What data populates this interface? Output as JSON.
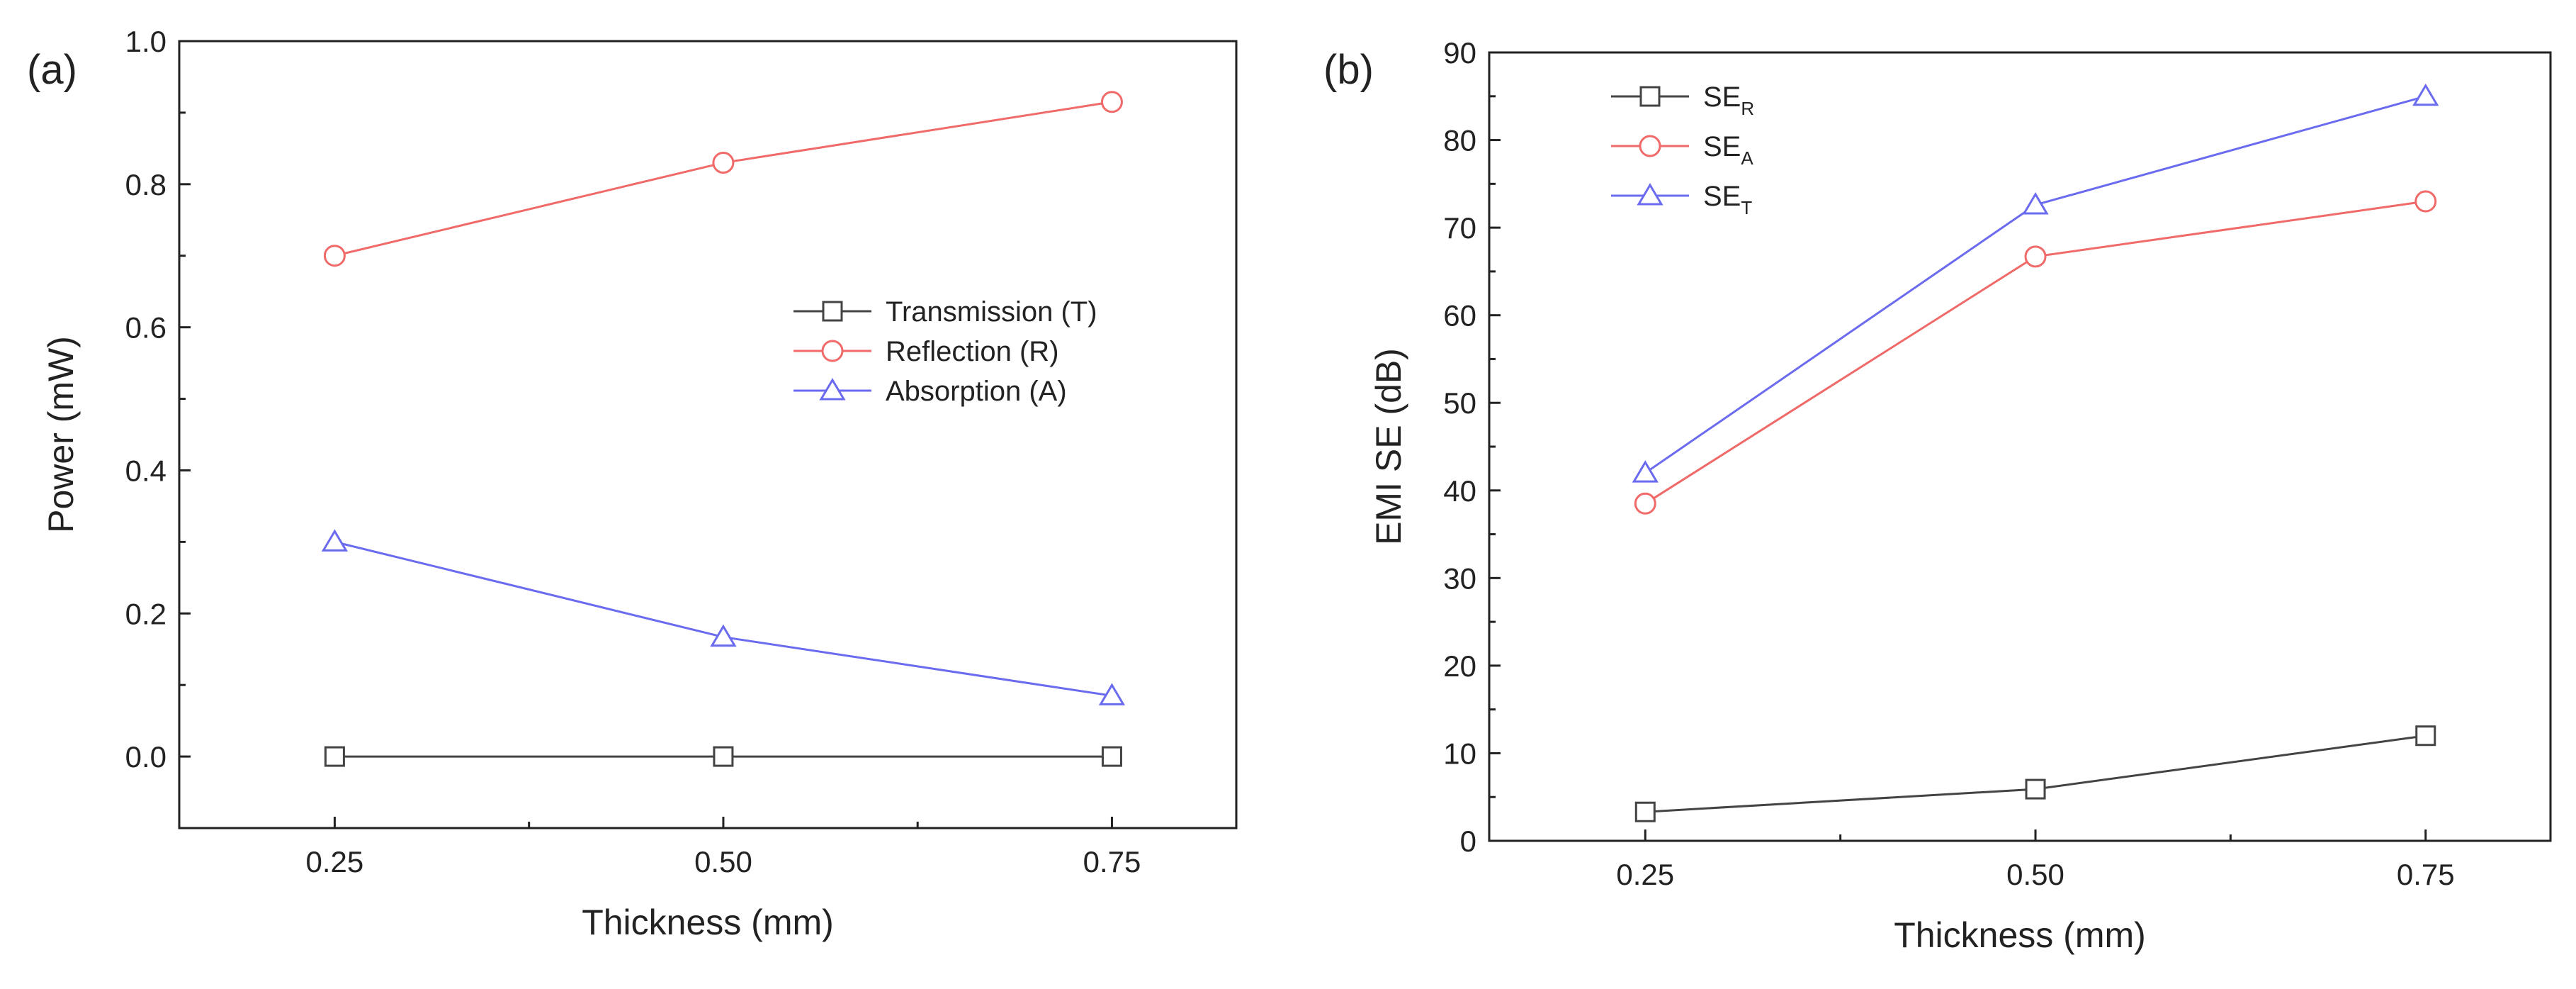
{
  "chart_data": [
    {
      "panel": "(a)",
      "type": "line",
      "xlabel": "Thickness (mm)",
      "ylabel": "Power (mW)",
      "x": [
        0.25,
        0.5,
        0.75
      ],
      "x_tick_labels": [
        "0.25",
        "0.50",
        "0.75"
      ],
      "y_tick_labels": [
        "0.0",
        "0.2",
        "0.4",
        "0.6",
        "0.8",
        "1.0"
      ],
      "xlim": [
        0.15,
        0.83
      ],
      "ylim": [
        -0.1,
        1.0
      ],
      "yticks": [
        0.0,
        0.2,
        0.4,
        0.6,
        0.8,
        1.0
      ],
      "legend_position": "center-right",
      "series": [
        {
          "name": "Transmission (T)",
          "marker": "square",
          "color": "#444444",
          "values": [
            0.0,
            0.0,
            0.0
          ]
        },
        {
          "name": "Reflection (R)",
          "marker": "circle",
          "color": "#f06a6a",
          "values": [
            0.7,
            0.83,
            0.915
          ]
        },
        {
          "name": "Absorption (A)",
          "marker": "triangle",
          "color": "#6b6bf0",
          "values": [
            0.3,
            0.167,
            0.085
          ]
        }
      ]
    },
    {
      "panel": "(b)",
      "type": "line",
      "xlabel": "Thickness (mm)",
      "ylabel": "EMI SE (dB)",
      "x": [
        0.25,
        0.5,
        0.75
      ],
      "x_tick_labels": [
        "0.25",
        "0.50",
        "0.75"
      ],
      "y_tick_labels": [
        "0",
        "10",
        "20",
        "30",
        "40",
        "50",
        "60",
        "70",
        "80",
        "90"
      ],
      "xlim": [
        0.15,
        0.83
      ],
      "ylim": [
        0,
        90
      ],
      "yticks": [
        0,
        10,
        20,
        30,
        40,
        50,
        60,
        70,
        80,
        90
      ],
      "legend_position": "top-left",
      "series": [
        {
          "name": "SE",
          "sub": "R",
          "marker": "square",
          "color": "#444444",
          "values": [
            3.3,
            5.9,
            12.0
          ]
        },
        {
          "name": "SE",
          "sub": "A",
          "marker": "circle",
          "color": "#f06a6a",
          "values": [
            38.5,
            66.7,
            73.0
          ]
        },
        {
          "name": "SE",
          "sub": "T",
          "marker": "triangle",
          "color": "#6b6bf0",
          "values": [
            42.0,
            72.6,
            85.0
          ]
        }
      ]
    }
  ]
}
